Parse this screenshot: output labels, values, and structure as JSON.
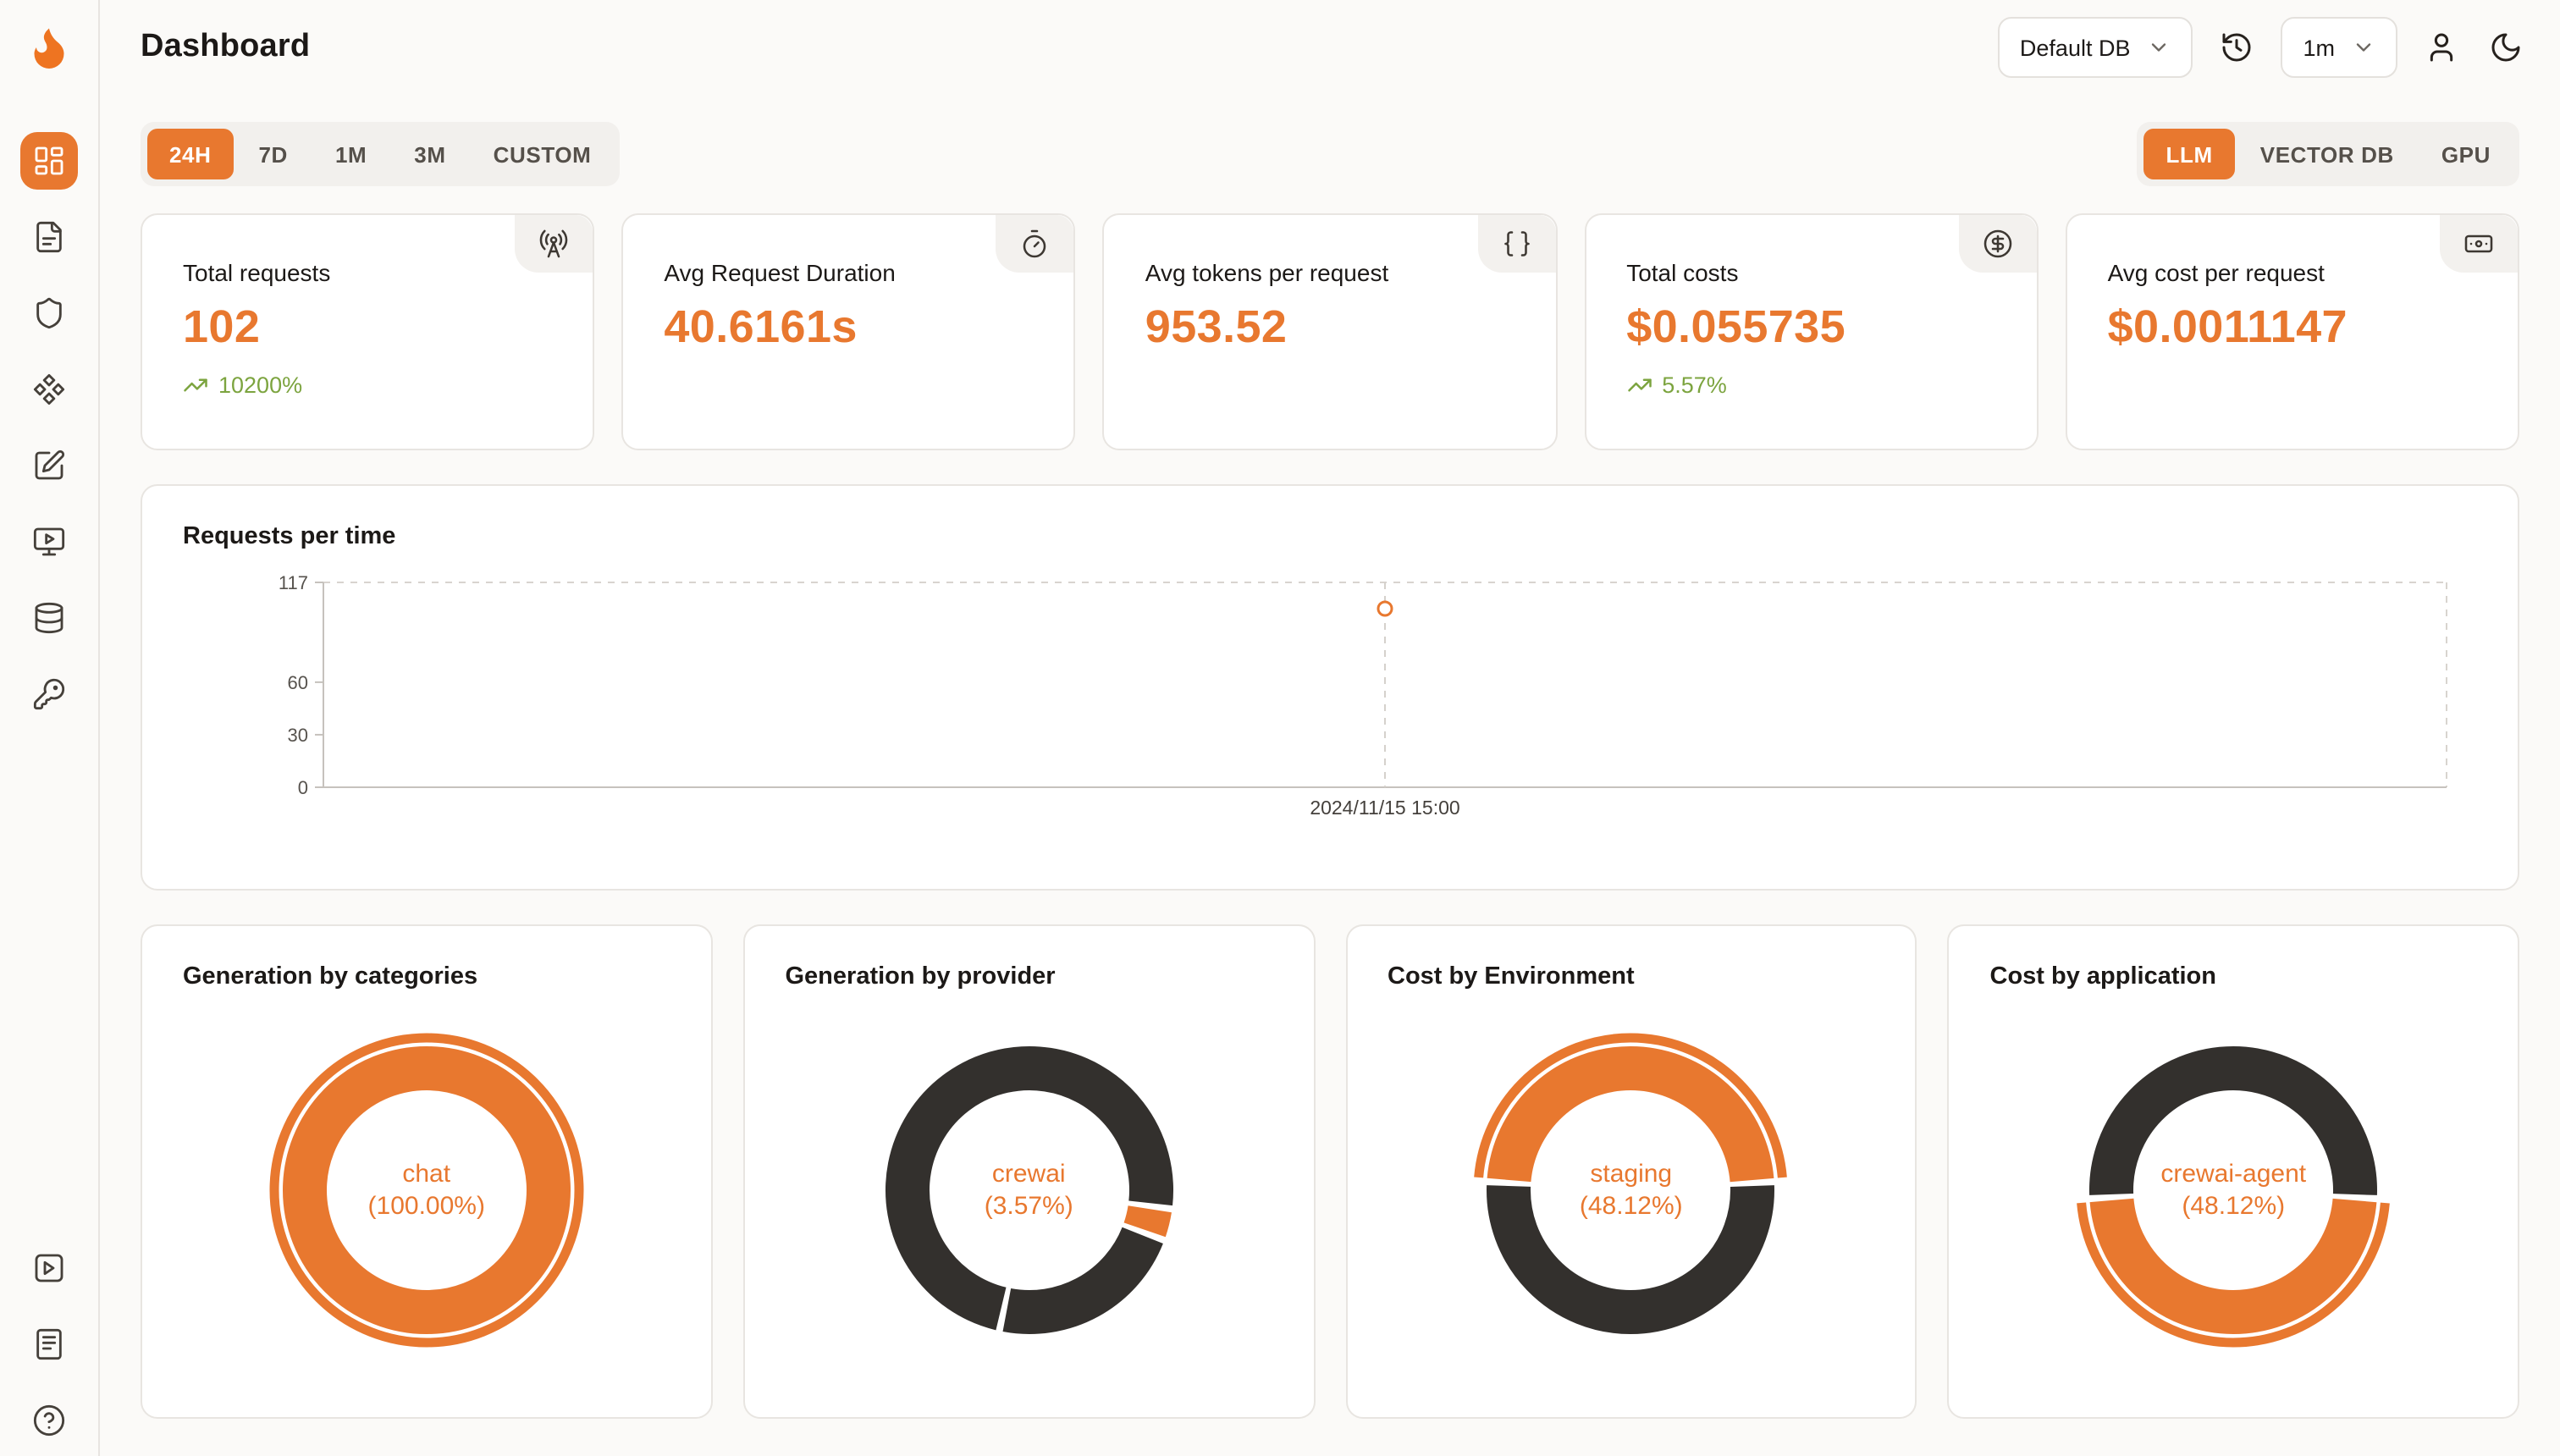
{
  "colors": {
    "accent": "#e8782f",
    "positive": "#7ca43f",
    "dark_slice": "#33302d"
  },
  "header": {
    "title": "Dashboard",
    "database_select": "Default DB",
    "interval_select": "1m"
  },
  "filters": {
    "time_ranges": [
      "24H",
      "7D",
      "1M",
      "3M",
      "CUSTOM"
    ],
    "active_time_range": "24H",
    "modes": [
      "LLM",
      "VECTOR DB",
      "GPU"
    ],
    "active_mode": "LLM"
  },
  "stats": [
    {
      "label": "Total requests",
      "value": "102",
      "delta": "10200%",
      "icon": "radio-tower-icon"
    },
    {
      "label": "Avg Request Duration",
      "value": "40.6161s",
      "icon": "timer-icon"
    },
    {
      "label": "Avg tokens per request",
      "value": "953.52",
      "icon": "braces-icon"
    },
    {
      "label": "Total costs",
      "value": "$0.055735",
      "delta": "5.57%",
      "icon": "circle-dollar-icon"
    },
    {
      "label": "Avg cost per request",
      "value": "$0.0011147",
      "icon": "banknote-icon"
    }
  ],
  "chart_data": [
    {
      "type": "line",
      "title": "Requests per time",
      "x": [
        "2024/11/15 15:00"
      ],
      "series": [
        {
          "name": "requests",
          "values": [
            102
          ]
        }
      ],
      "ylim": [
        0,
        117
      ],
      "yticks": [
        0,
        30,
        60,
        117
      ],
      "grid": "dashed-border",
      "legend": "none",
      "point_color": "#e8782f"
    },
    {
      "type": "pie",
      "title": "Generation by categories",
      "center_label": "chat",
      "center_value": "(100.00%)",
      "start_angle": 0,
      "slices": [
        {
          "label": "chat",
          "value": 100,
          "color": "#e8782f",
          "highlight": true
        }
      ]
    },
    {
      "type": "pie",
      "title": "Generation by provider",
      "center_label": "crewai",
      "center_value": "(3.57%)",
      "start_angle": 97.5,
      "slices": [
        {
          "label": "crewai",
          "value": 3.57,
          "color": "#e8782f"
        },
        {
          "label": "",
          "value": 22.7,
          "color": "#33302d"
        },
        {
          "label": "",
          "value": 73.73,
          "color": "#33302d"
        }
      ]
    },
    {
      "type": "pie",
      "title": "Cost by Environment",
      "center_label": "staging",
      "center_value": "(48.12%)",
      "start_angle": 273.4,
      "slices": [
        {
          "label": "staging",
          "value": 48.12,
          "color": "#e8782f",
          "highlight": true
        },
        {
          "label": "",
          "value": 51.88,
          "color": "#33302d"
        }
      ]
    },
    {
      "type": "pie",
      "title": "Cost by application",
      "center_label": "crewai-agent",
      "center_value": "(48.12%)",
      "start_angle": 93.4,
      "slices": [
        {
          "label": "crewai-agent",
          "value": 48.12,
          "color": "#e8782f",
          "highlight": true
        },
        {
          "label": "",
          "value": 51.88,
          "color": "#33302d"
        }
      ]
    }
  ],
  "sidebar": {
    "icons": [
      "dashboard-grid-icon",
      "requests-file-icon",
      "shield-icon",
      "integrations-icon",
      "evaluations-icon",
      "playground-icon",
      "database-icon",
      "api-key-icon"
    ],
    "bottom_icons": [
      "getting-started-icon",
      "docs-icon",
      "help-icon"
    ]
  }
}
